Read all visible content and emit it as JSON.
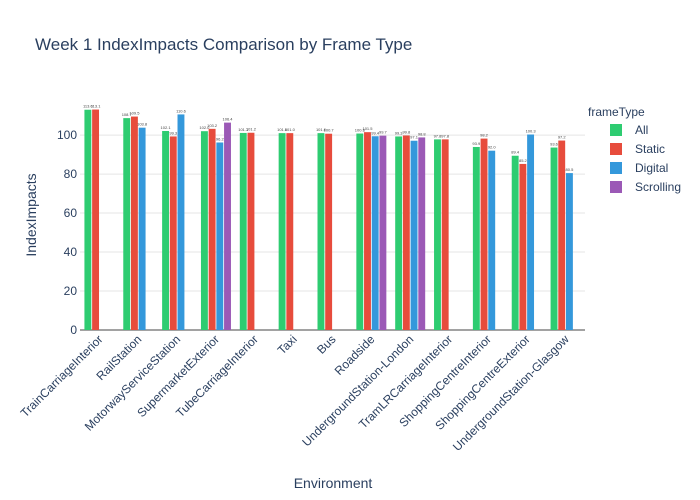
{
  "chart_data": {
    "type": "bar",
    "title": "Week 1 IndexImpacts Comparison by Frame Type",
    "xlabel": "Environment",
    "ylabel": "IndexImpacts",
    "ylim": [
      0,
      118
    ],
    "yticks": [
      0,
      20,
      40,
      60,
      80,
      100
    ],
    "grid": true,
    "legend_title": "frameType",
    "legend_placement": "right",
    "categories": [
      "TrainCarriageInterior",
      "RailStation",
      "MotorwayServiceStation",
      "SupermarketExterior",
      "TubeCarriageInterior",
      "Taxi",
      "Bus",
      "Roadside",
      "UndergroundStation-London",
      "TramLRCarriageInterior",
      "ShoppingCentreInterior",
      "ShoppingCentreExterior",
      "UndergroundStation-Glasgow"
    ],
    "series": [
      {
        "name": "All",
        "color": "#2ecc71",
        "values": [
          113.0,
          108.7,
          102.1,
          102.0,
          101.1,
          101.0,
          101.0,
          100.8,
          99.3,
          97.8,
          93.9,
          89.4,
          93.6
        ],
        "labels": [
          "113.0",
          "108.7",
          "102.1",
          "102.0",
          "101.1",
          "101.0",
          "101.0",
          "100.8",
          "99.3",
          "97.8",
          "93.9",
          "89.4",
          "93.6"
        ]
      },
      {
        "name": "Static",
        "color": "#e74c3c",
        "values": [
          113.1,
          109.5,
          99.3,
          103.2,
          101.2,
          101.0,
          100.7,
          101.5,
          99.8,
          97.8,
          98.2,
          85.2,
          97.2
        ],
        "labels": [
          "113.1",
          "109.5",
          "99.3",
          "103.2",
          "101.2",
          "101.0",
          "100.7",
          "101.5",
          "99.8",
          "97.8",
          "98.2",
          "85.2",
          "97.2"
        ]
      },
      {
        "name": "Digital",
        "color": "#3498db",
        "values": [
          null,
          103.8,
          110.6,
          96.2,
          null,
          null,
          null,
          99.4,
          97.1,
          null,
          92.0,
          100.3,
          80.5
        ],
        "labels": [
          "",
          "103.8",
          "110.6",
          "96.2",
          "",
          "",
          "",
          "99.4",
          "97.1",
          "",
          "92.0",
          "100.3",
          "80.5"
        ]
      },
      {
        "name": "Scrolling",
        "color": "#9b59b6",
        "values": [
          null,
          null,
          null,
          106.4,
          null,
          null,
          null,
          99.7,
          98.8,
          null,
          null,
          null,
          null
        ],
        "labels": [
          "",
          "",
          "",
          "106.4",
          "",
          "",
          "",
          "99.7",
          "98.8",
          "",
          "",
          "",
          ""
        ]
      }
    ]
  }
}
